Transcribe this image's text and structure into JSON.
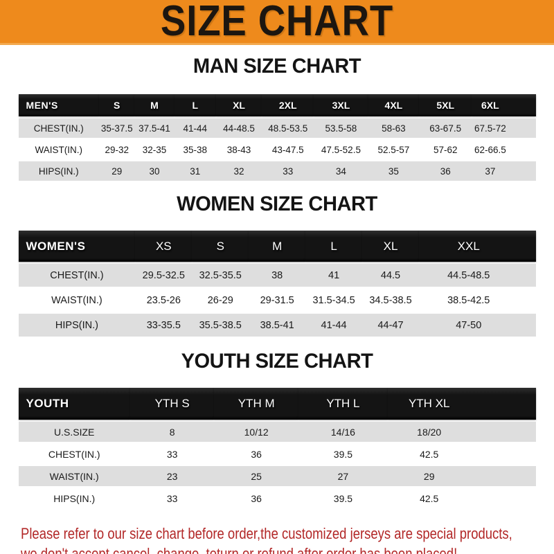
{
  "banner": {
    "title": "SIZE CHART"
  },
  "colors": {
    "banner_orange": "#EE8A1C",
    "bar_black": "#141414",
    "row_gray": "#DEDEDE",
    "notice_red": "#B22727"
  },
  "sections": [
    {
      "id": "men",
      "heading": "MAN SIZE CHART",
      "header_label": "MEN'S",
      "columns": [
        "S",
        "M",
        "L",
        "XL",
        "2XL",
        "3XL",
        "4XL",
        "5XL",
        "6XL"
      ],
      "rows": [
        {
          "label": "CHEST(IN.)",
          "values": [
            "35-37.5",
            "37.5-41",
            "41-44",
            "44-48.5",
            "48.5-53.5",
            "53.5-58",
            "58-63",
            "63-67.5",
            "67.5-72"
          ]
        },
        {
          "label": "WAIST(IN.)",
          "values": [
            "29-32",
            "32-35",
            "35-38",
            "38-43",
            "43-47.5",
            "47.5-52.5",
            "52.5-57",
            "57-62",
            "62-66.5"
          ]
        },
        {
          "label": "HIPS(IN.)",
          "values": [
            "29",
            "30",
            "31",
            "32",
            "33",
            "34",
            "35",
            "36",
            "37"
          ]
        }
      ]
    },
    {
      "id": "women",
      "heading": "WOMEN SIZE CHART",
      "header_label": "WOMEN'S",
      "columns": [
        "XS",
        "S",
        "M",
        "L",
        "XL",
        "XXL"
      ],
      "rows": [
        {
          "label": "CHEST(IN.)",
          "values": [
            "29.5-32.5",
            "32.5-35.5",
            "38",
            "41",
            "44.5",
            "44.5-48.5"
          ]
        },
        {
          "label": "WAIST(IN.)",
          "values": [
            "23.5-26",
            "26-29",
            "29-31.5",
            "31.5-34.5",
            "34.5-38.5",
            "38.5-42.5"
          ]
        },
        {
          "label": "HIPS(IN.)",
          "values": [
            "33-35.5",
            "35.5-38.5",
            "38.5-41",
            "41-44",
            "44-47",
            "47-50"
          ]
        }
      ]
    },
    {
      "id": "youth",
      "heading": "YOUTH SIZE CHART",
      "header_label": "YOUTH",
      "columns": [
        "YTH S",
        "YTH M",
        "YTH L",
        "YTH XL"
      ],
      "rows": [
        {
          "label": "U.S.SIZE",
          "values": [
            "8",
            "10/12",
            "14/16",
            "18/20"
          ]
        },
        {
          "label": "CHEST(IN.)",
          "values": [
            "33",
            "36",
            "39.5",
            "42.5"
          ]
        },
        {
          "label": "WAIST(IN.)",
          "values": [
            "23",
            "25",
            "27",
            "29"
          ]
        },
        {
          "label": "HIPS(IN.)",
          "values": [
            "33",
            "36",
            "39.5",
            "42.5"
          ]
        }
      ]
    }
  ],
  "footer": {
    "line1": "Please refer to our size chart before order,the customized jerseys are special products,",
    "line2": "we don't accept cancel, change, teturn or refund after order has been placed!"
  }
}
